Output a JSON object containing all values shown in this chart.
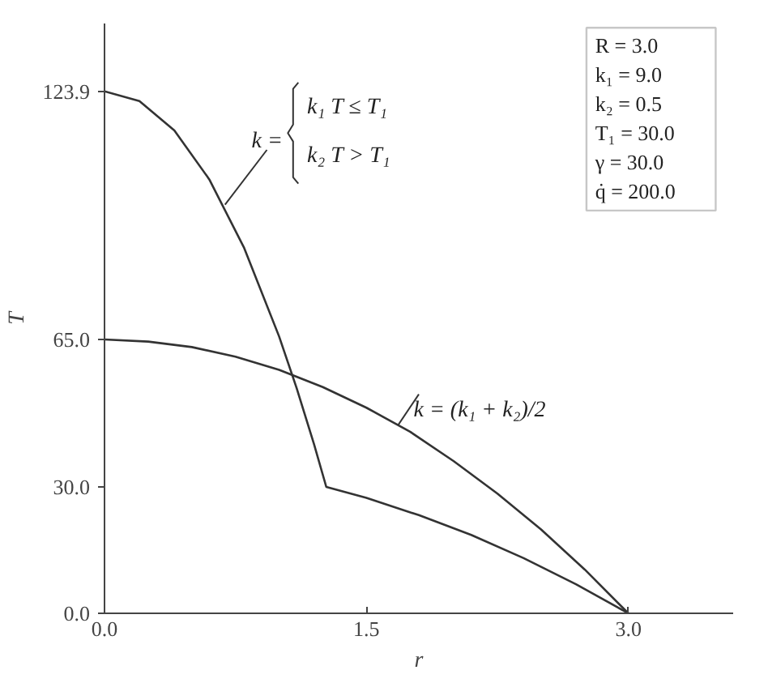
{
  "chart_data": {
    "type": "line",
    "xlabel": "r",
    "ylabel": "T",
    "xlim": [
      0,
      3.6
    ],
    "ylim": [
      0,
      140
    ],
    "xticks": [
      {
        "value": 0,
        "label": "0.0"
      },
      {
        "value": 1.5,
        "label": "1.5"
      },
      {
        "value": 3.0,
        "label": "3.0"
      }
    ],
    "yticks": [
      {
        "value": 0,
        "label": "0.0"
      },
      {
        "value": 30,
        "label": "30.0"
      },
      {
        "value": 65,
        "label": "65.0"
      },
      {
        "value": 123.9,
        "label": "123.9"
      }
    ],
    "grid": false,
    "marker": "none",
    "line_style": "solid",
    "series": [
      {
        "color": "#333333",
        "x": [
          0,
          0.2,
          0.4,
          0.6,
          0.8,
          1.0,
          1.1,
          1.2,
          1.27,
          1.5,
          1.8,
          2.1,
          2.4,
          2.7,
          3.0
        ],
        "values": [
          123.9,
          121.6,
          114.6,
          103.0,
          86.7,
          65.7,
          53.5,
          40.1,
          30.0,
          27.4,
          23.3,
          18.6,
          13.1,
          6.9,
          0
        ]
      },
      {
        "color": "#333333",
        "x": [
          0,
          0.25,
          0.5,
          0.75,
          1.0,
          1.25,
          1.5,
          1.75,
          2.0,
          2.25,
          2.5,
          2.75,
          3.0
        ],
        "values": [
          65,
          64.5,
          63.2,
          60.9,
          57.8,
          53.7,
          48.8,
          43.1,
          36.1,
          28.4,
          19.9,
          10.4,
          0
        ]
      }
    ],
    "annotations": [
      {
        "text": "k =",
        "x": 0.69,
        "y": 97
      },
      "k₁   T ≤ T₁",
      "k₂   T > T₁",
      {
        "text": "k = (k₁ + k₂)/2",
        "x": 1.68,
        "y": 44.6
      },
      "R = 3.0",
      "k₁ = 9.0",
      "k₂ = 0.5",
      "T₁ = 30.0",
      "γ = 30.0",
      "q̇ = 200.0"
    ]
  }
}
